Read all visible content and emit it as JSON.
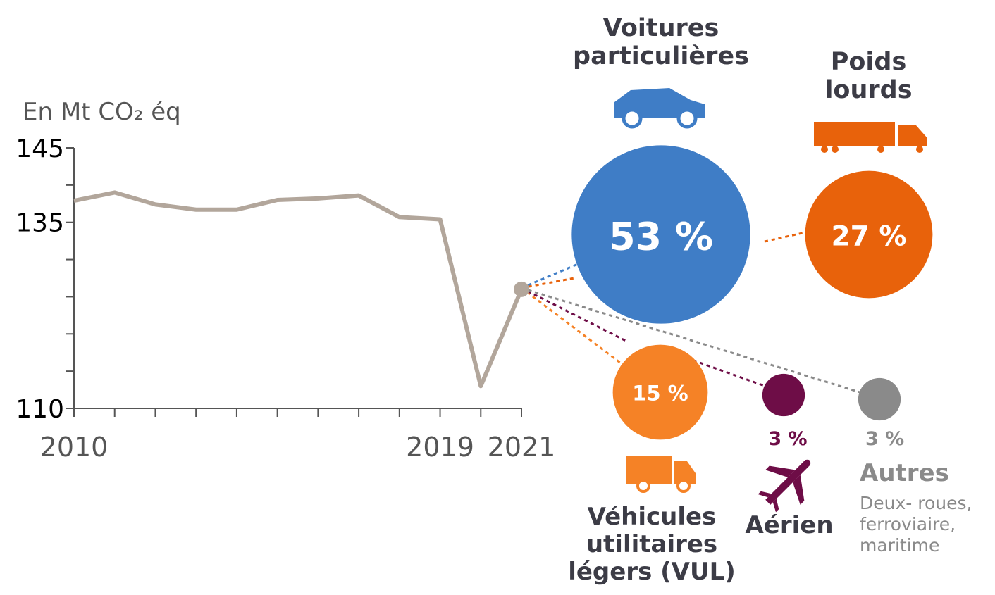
{
  "chart_data": [
    {
      "type": "line",
      "y_label": "En Mt CO₂ éq",
      "x": [
        2010,
        2011,
        2012,
        2013,
        2014,
        2015,
        2016,
        2017,
        2018,
        2019,
        2020,
        2021
      ],
      "values": [
        137.9,
        139.0,
        137.4,
        136.7,
        136.7,
        138.0,
        138.2,
        138.6,
        135.7,
        135.4,
        113.0,
        126.0
      ],
      "color": "#b2a69b",
      "xlim": [
        2010,
        2021
      ],
      "xticks": [
        2010,
        2019,
        2021
      ],
      "ylim": [
        110,
        145
      ],
      "yticks": [
        110,
        135,
        145
      ],
      "yminor_ticks": [
        115,
        120,
        125,
        130,
        140
      ]
    },
    {
      "type": "bubble",
      "categories": [
        "Voitures particulières",
        "Poids lourds",
        "Véhicules utilitaires légers (VUL)",
        "Aérien",
        "Autres"
      ],
      "values": [
        53,
        27,
        15,
        3,
        3
      ],
      "value_labels": [
        "53 %",
        "27 %",
        "15 %",
        "3 %",
        "3 %"
      ],
      "colors": [
        "#3f7dc6",
        "#e8620b",
        "#f58226",
        "#6e0d47",
        "#8a8a8a"
      ],
      "annotation": "Deux- roues, ferroviaire, maritime"
    }
  ]
}
